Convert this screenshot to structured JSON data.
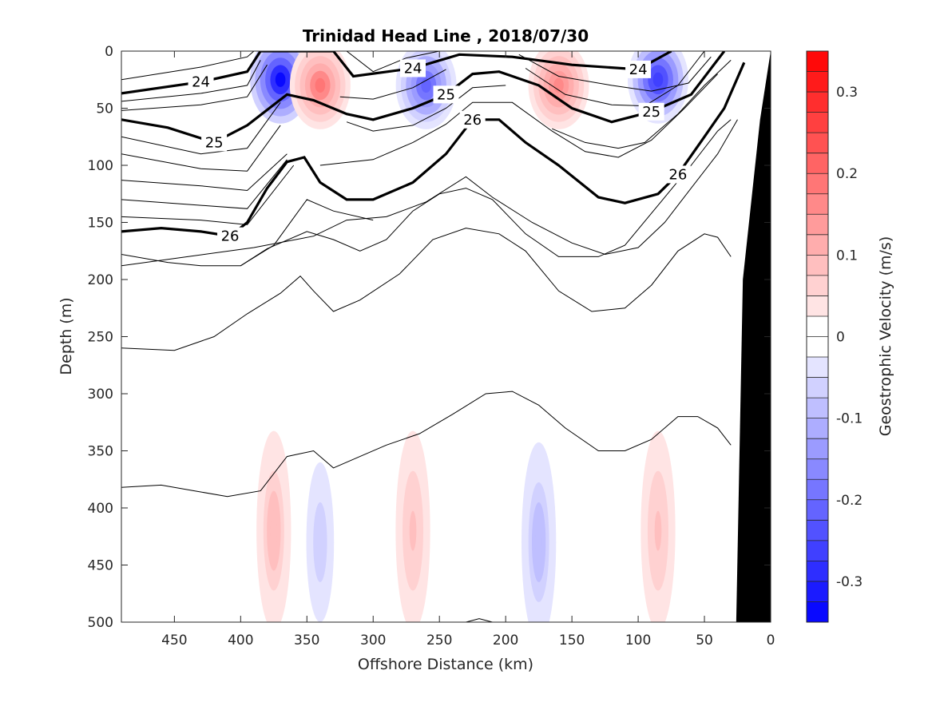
{
  "chart_data": {
    "type": "heatmap",
    "title": "Trinidad Head Line , 2018/07/30",
    "xlabel": "Offshore Distance (km)",
    "ylabel": "Depth (m)",
    "colorbar_label": "Geostrophic Velocity (m/s)",
    "xlim": [
      490,
      0
    ],
    "ylim": [
      0,
      500
    ],
    "x_reversed": true,
    "y_reversed": true,
    "xticks": [
      450,
      400,
      350,
      300,
      250,
      200,
      150,
      100,
      50,
      0
    ],
    "yticks": [
      0,
      50,
      100,
      150,
      200,
      250,
      300,
      350,
      400,
      450,
      500
    ],
    "clim": [
      -0.35,
      0.35
    ],
    "colorbar_ticks": [
      0.3,
      0.2,
      0.1,
      0,
      -0.1,
      -0.2,
      -0.3
    ],
    "colorbar_levels": 28,
    "colors": {
      "positive": "#ff0000",
      "negative": "#0000ff",
      "zero": "#ffffff",
      "land": "#000000"
    },
    "velocity_features": [
      {
        "x": 370,
        "depth": 25,
        "velocity": -0.33
      },
      {
        "x": 340,
        "depth": 30,
        "velocity": 0.18
      },
      {
        "x": 260,
        "depth": 30,
        "velocity": -0.22
      },
      {
        "x": 160,
        "depth": 30,
        "velocity": 0.17
      },
      {
        "x": 85,
        "depth": 25,
        "velocity": -0.27
      },
      {
        "x": 375,
        "depth": 420,
        "velocity": 0.09
      },
      {
        "x": 340,
        "depth": 430,
        "velocity": -0.07
      },
      {
        "x": 270,
        "depth": 420,
        "velocity": 0.08
      },
      {
        "x": 175,
        "depth": 430,
        "velocity": -0.09
      },
      {
        "x": 85,
        "depth": 420,
        "velocity": 0.08
      }
    ],
    "density_contours": {
      "labeled_levels": [
        {
          "label": "24",
          "points": [
            [
              490,
              37
            ],
            [
              430,
              27
            ],
            [
              395,
              18
            ],
            [
              385,
              0
            ],
            [
              330,
              0
            ],
            [
              315,
              22
            ],
            [
              270,
              15
            ],
            [
              235,
              3
            ],
            [
              195,
              5
            ],
            [
              150,
              12
            ],
            [
              100,
              16
            ],
            [
              75,
              0
            ]
          ]
        },
        {
          "label": "25",
          "points": [
            [
              490,
              60
            ],
            [
              455,
              67
            ],
            [
              420,
              80
            ],
            [
              395,
              65
            ],
            [
              365,
              38
            ],
            [
              345,
              43
            ],
            [
              320,
              55
            ],
            [
              300,
              60
            ],
            [
              270,
              50
            ],
            [
              245,
              38
            ],
            [
              225,
              20
            ],
            [
              205,
              18
            ],
            [
              175,
              30
            ],
            [
              150,
              50
            ],
            [
              120,
              62
            ],
            [
              90,
              53
            ],
            [
              60,
              38
            ],
            [
              35,
              0
            ]
          ]
        },
        {
          "label": "26",
          "points": [
            [
              490,
              158
            ],
            [
              460,
              155
            ],
            [
              430,
              158
            ],
            [
              408,
              162
            ],
            [
              395,
              150
            ],
            [
              380,
              120
            ],
            [
              365,
              97
            ],
            [
              352,
              93
            ],
            [
              340,
              115
            ],
            [
              320,
              130
            ],
            [
              300,
              130
            ],
            [
              270,
              115
            ],
            [
              245,
              90
            ],
            [
              225,
              60
            ],
            [
              205,
              60
            ],
            [
              185,
              80
            ],
            [
              160,
              100
            ],
            [
              130,
              128
            ],
            [
              110,
              133
            ],
            [
              85,
              125
            ],
            [
              70,
              108
            ],
            [
              50,
              75
            ],
            [
              35,
              50
            ],
            [
              20,
              10
            ]
          ]
        }
      ],
      "thin_levels": [
        [
          [
            490,
            25
          ],
          [
            430,
            14
          ],
          [
            395,
            5
          ],
          [
            390,
            0
          ]
        ],
        [
          [
            490,
            44
          ],
          [
            430,
            37
          ],
          [
            395,
            30
          ],
          [
            385,
            8
          ]
        ],
        [
          [
            490,
            52
          ],
          [
            430,
            47
          ],
          [
            395,
            40
          ],
          [
            380,
            12
          ]
        ],
        [
          [
            490,
            75
          ],
          [
            430,
            90
          ],
          [
            395,
            85
          ],
          [
            370,
            45
          ]
        ],
        [
          [
            490,
            90
          ],
          [
            430,
            103
          ],
          [
            395,
            105
          ],
          [
            370,
            65
          ]
        ],
        [
          [
            490,
            113
          ],
          [
            430,
            118
          ],
          [
            395,
            122
          ],
          [
            365,
            90
          ]
        ],
        [
          [
            490,
            130
          ],
          [
            430,
            135
          ],
          [
            395,
            138
          ],
          [
            365,
            95
          ]
        ],
        [
          [
            490,
            145
          ],
          [
            430,
            148
          ],
          [
            395,
            152
          ],
          [
            360,
            100
          ]
        ],
        [
          [
            320,
            0
          ],
          [
            300,
            18
          ],
          [
            275,
            6
          ],
          [
            250,
            0
          ]
        ],
        [
          [
            325,
            40
          ],
          [
            300,
            42
          ],
          [
            270,
            32
          ],
          [
            245,
            16
          ]
        ],
        [
          [
            320,
            62
          ],
          [
            300,
            70
          ],
          [
            270,
            65
          ],
          [
            245,
            50
          ],
          [
            225,
            32
          ],
          [
            200,
            30
          ]
        ],
        [
          [
            340,
            100
          ],
          [
            300,
            95
          ],
          [
            270,
            80
          ],
          [
            245,
            64
          ],
          [
            225,
            45
          ],
          [
            195,
            45
          ],
          [
            165,
            70
          ],
          [
            140,
            88
          ],
          [
            115,
            93
          ],
          [
            90,
            78
          ],
          [
            65,
            50
          ],
          [
            40,
            20
          ]
        ],
        [
          [
            190,
            3
          ],
          [
            160,
            22
          ],
          [
            120,
            30
          ],
          [
            90,
            35
          ],
          [
            62,
            28
          ],
          [
            45,
            5
          ]
        ],
        [
          [
            185,
            15
          ],
          [
            155,
            38
          ],
          [
            120,
            47
          ],
          [
            95,
            48
          ],
          [
            70,
            30
          ],
          [
            50,
            0
          ]
        ],
        [
          [
            165,
            68
          ],
          [
            140,
            80
          ],
          [
            115,
            85
          ],
          [
            95,
            80
          ],
          [
            70,
            55
          ],
          [
            50,
            30
          ],
          [
            30,
            8
          ]
        ],
        [
          [
            490,
            188
          ],
          [
            440,
            180
          ],
          [
            390,
            172
          ],
          [
            345,
            162
          ],
          [
            320,
            148
          ],
          [
            290,
            145
          ],
          [
            260,
            132
          ],
          [
            230,
            110
          ],
          [
            210,
            128
          ],
          [
            180,
            150
          ],
          [
            150,
            168
          ],
          [
            125,
            178
          ],
          [
            100,
            172
          ],
          [
            80,
            150
          ],
          [
            60,
            120
          ],
          [
            40,
            90
          ],
          [
            25,
            60
          ]
        ],
        [
          [
            490,
            178
          ],
          [
            455,
            185
          ],
          [
            430,
            188
          ],
          [
            400,
            188
          ],
          [
            375,
            170
          ],
          [
            350,
            130
          ],
          [
            330,
            140
          ],
          [
            300,
            148
          ]
        ],
        [
          [
            400,
            188
          ],
          [
            380,
            173
          ],
          [
            350,
            158
          ],
          [
            330,
            165
          ],
          [
            310,
            175
          ],
          [
            290,
            165
          ],
          [
            270,
            140
          ],
          [
            250,
            125
          ],
          [
            230,
            120
          ],
          [
            210,
            130
          ],
          [
            185,
            160
          ],
          [
            160,
            180
          ],
          [
            130,
            180
          ],
          [
            110,
            170
          ],
          [
            85,
            135
          ],
          [
            60,
            100
          ],
          [
            40,
            70
          ],
          [
            30,
            60
          ]
        ],
        [
          [
            490,
            260
          ],
          [
            450,
            262
          ],
          [
            420,
            250
          ],
          [
            395,
            230
          ],
          [
            370,
            212
          ],
          [
            355,
            197
          ],
          [
            345,
            210
          ],
          [
            330,
            228
          ],
          [
            310,
            218
          ],
          [
            280,
            195
          ],
          [
            255,
            165
          ],
          [
            230,
            155
          ],
          [
            205,
            160
          ],
          [
            185,
            175
          ],
          [
            160,
            210
          ],
          [
            135,
            228
          ],
          [
            110,
            225
          ],
          [
            90,
            205
          ],
          [
            70,
            175
          ],
          [
            50,
            160
          ],
          [
            40,
            163
          ],
          [
            30,
            180
          ]
        ],
        [
          [
            490,
            382
          ],
          [
            460,
            380
          ],
          [
            435,
            385
          ],
          [
            410,
            390
          ],
          [
            385,
            385
          ],
          [
            365,
            355
          ],
          [
            345,
            350
          ],
          [
            330,
            365
          ],
          [
            310,
            355
          ],
          [
            290,
            345
          ],
          [
            265,
            335
          ],
          [
            240,
            318
          ],
          [
            215,
            300
          ],
          [
            195,
            298
          ],
          [
            175,
            310
          ],
          [
            155,
            330
          ],
          [
            130,
            350
          ],
          [
            110,
            350
          ],
          [
            90,
            340
          ],
          [
            70,
            320
          ],
          [
            55,
            320
          ],
          [
            40,
            330
          ],
          [
            30,
            345
          ]
        ],
        [
          [
            210,
            500
          ],
          [
            220,
            497
          ],
          [
            230,
            500
          ]
        ]
      ]
    }
  }
}
